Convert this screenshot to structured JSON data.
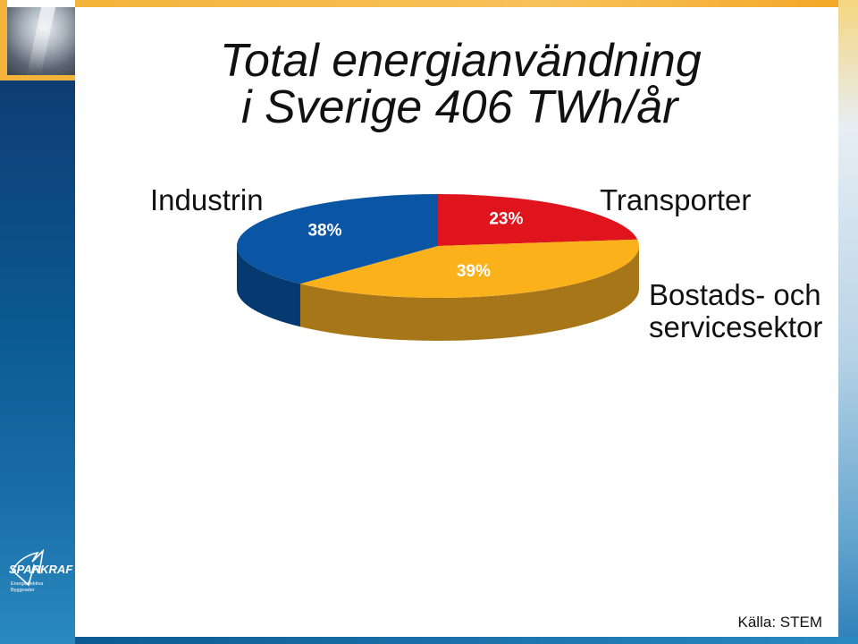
{
  "slide": {
    "title_line1": "Total energianvändning",
    "title_line2": "i Sverige 406 TWh/år",
    "source": "Källa: STEM",
    "logo_text": "SPARKRAFT",
    "logo_subtext_1": "Energieffektiva",
    "logo_subtext_2": "Byggnader"
  },
  "labels": {
    "industry": "Industrin",
    "transport": "Transporter",
    "residential_line1": "Bostads- och",
    "residential_line2": "servicesektor"
  },
  "chart_data": {
    "type": "pie",
    "title": "Total energianvändning i Sverige 406 TWh/år",
    "slices": [
      {
        "name": "Transporter",
        "value": 23,
        "label": "23%",
        "color": "#e0141c",
        "side_color": "#8c0d12"
      },
      {
        "name": "Bostads- och servicesektor",
        "value": 39,
        "label": "39%",
        "color": "#fbb11a",
        "side_color": "#a67618"
      },
      {
        "name": "Industrin",
        "value": 38,
        "label": "38%",
        "color": "#0a56a4",
        "side_color": "#06396f"
      }
    ],
    "legend": "none",
    "three_d": true
  }
}
